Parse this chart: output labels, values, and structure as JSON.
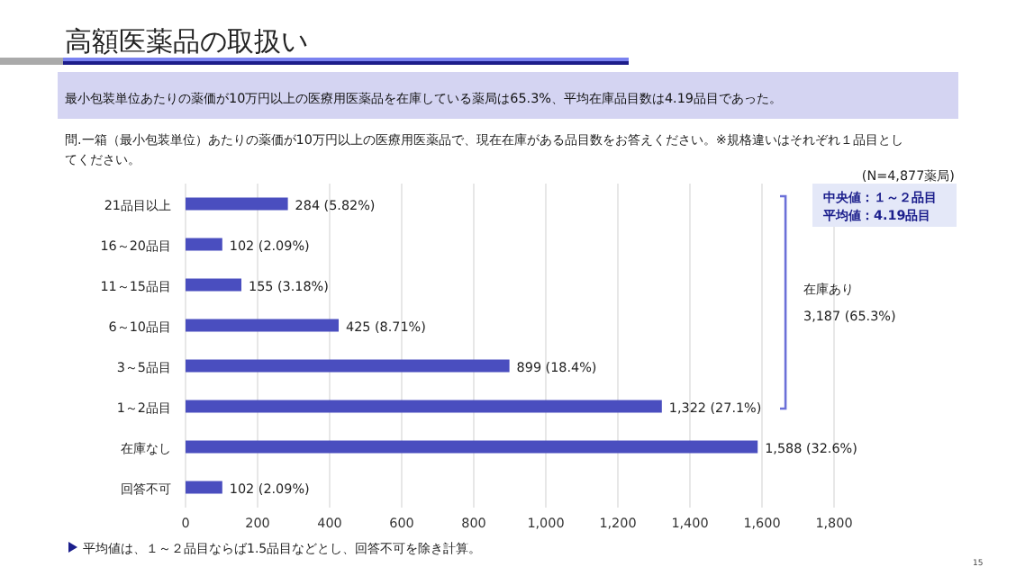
{
  "chart_data": {
    "type": "bar",
    "orientation": "horizontal",
    "title": "高額医薬品の取扱い",
    "subtitle": "最小包装単位あたりの薬価が10万円以上の医療用医薬品を在庫している薬局は65.3%、平均在庫品目数は4.19品目であった。",
    "categories": [
      "21品目以上",
      "16～20品目",
      "11～15品目",
      "6～10品目",
      "3～5品目",
      "1～2品目",
      "在庫なし",
      "回答不可"
    ],
    "values": [
      284,
      102,
      155,
      425,
      899,
      1322,
      1588,
      102
    ],
    "value_labels": [
      "284 (5.82%)",
      "102 (2.09%)",
      "155 (3.18%)",
      "425 (8.71%)",
      "899 (18.4%)",
      "1,322 (27.1%)",
      "1,588 (32.6%)",
      "102 (2.09%)"
    ],
    "color": "#4a4ebf",
    "xlim": [
      0,
      1800
    ],
    "xticks": [
      0,
      {
        "value": 200,
        "label": "200"
      },
      {
        "value": 400,
        "label": "400"
      },
      {
        "value": 600,
        "label": "600"
      },
      {
        "value": 800,
        "label": "800"
      },
      {
        "value": 1000,
        "label": "1,000"
      },
      {
        "value": 1200,
        "label": "1,200"
      },
      {
        "value": 1400,
        "label": "1,400"
      },
      {
        "value": 1600,
        "label": "1,600"
      },
      {
        "value": 1800,
        "label": "1,800"
      }
    ],
    "grid": "x",
    "annotations": [
      "問.一箱（最小包装単位）あたりの薬価が10万円以上の医療用医薬品で、現在在庫がある品目数をお答えください。※規格違いはそれぞれ１品目としてください。",
      "(N=4,877薬局)",
      "中央値：１～２品目",
      "平均値：4.19品目",
      "在庫あり",
      "3,187 (65.3%)",
      "平均値は、１～２品目ならば1.5品目などとし、回答不可を除き計算。",
      "15"
    ]
  }
}
